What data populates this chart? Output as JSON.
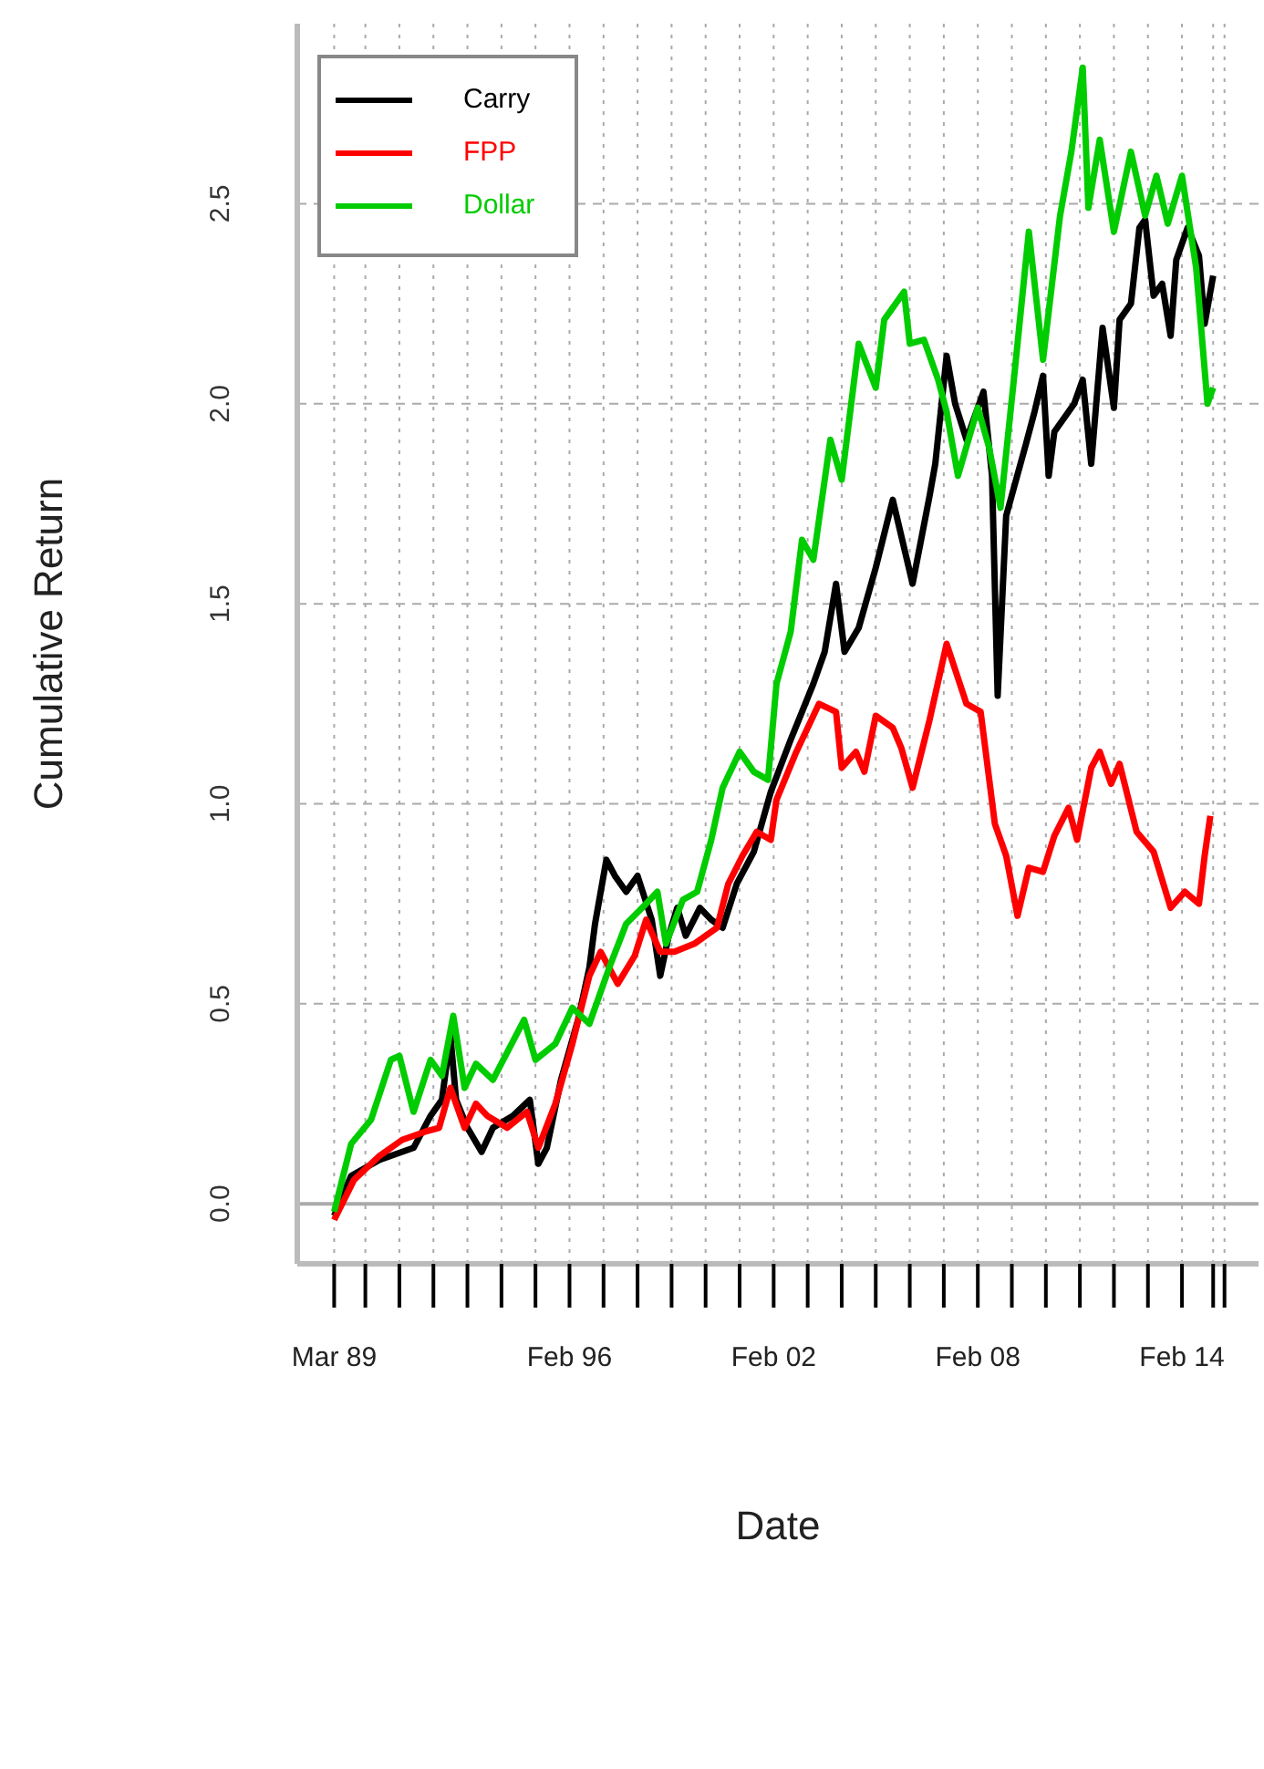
{
  "chart_data": {
    "type": "line",
    "xlabel": "Date",
    "ylabel": "Cumulative Return",
    "xlim": [
      "1988-02",
      "2016-05"
    ],
    "xticks": [
      {
        "value": "1989-03",
        "label": "Mar 89"
      },
      {
        "value": "1990-02",
        "label": null
      },
      {
        "value": "1991-02",
        "label": null
      },
      {
        "value": "1992-02",
        "label": null
      },
      {
        "value": "1993-02",
        "label": null
      },
      {
        "value": "1994-02",
        "label": null
      },
      {
        "value": "1995-02",
        "label": null
      },
      {
        "value": "1996-02",
        "label": "Feb 96"
      },
      {
        "value": "1997-02",
        "label": null
      },
      {
        "value": "1998-02",
        "label": null
      },
      {
        "value": "1999-02",
        "label": null
      },
      {
        "value": "2000-02",
        "label": null
      },
      {
        "value": "2001-02",
        "label": null
      },
      {
        "value": "2002-02",
        "label": "Feb 02"
      },
      {
        "value": "2003-02",
        "label": null
      },
      {
        "value": "2004-02",
        "label": null
      },
      {
        "value": "2005-02",
        "label": null
      },
      {
        "value": "2006-02",
        "label": null
      },
      {
        "value": "2007-02",
        "label": null
      },
      {
        "value": "2008-02",
        "label": "Feb 08"
      },
      {
        "value": "2009-02",
        "label": null
      },
      {
        "value": "2010-02",
        "label": null
      },
      {
        "value": "2011-02",
        "label": null
      },
      {
        "value": "2012-02",
        "label": null
      },
      {
        "value": "2013-02",
        "label": null
      },
      {
        "value": "2014-02",
        "label": "Feb 14"
      },
      {
        "value": "2015-01",
        "label": null
      },
      {
        "value": "2015-05",
        "label": null
      }
    ],
    "ylim": [
      -0.15,
      2.95
    ],
    "yticks": [
      {
        "value": 0,
        "label": "0.0"
      },
      0.5,
      {
        "value": 1,
        "label": "1.0"
      },
      1.5,
      {
        "value": 2,
        "label": "2.0"
      },
      2.5
    ],
    "grid": true,
    "legend": "top left",
    "line_style": "solid",
    "ref_lines": [
      {
        "axis": "y",
        "value": 0,
        "label": null,
        "color": "#aaaaaa",
        "line_style": "solid"
      }
    ],
    "series": [
      {
        "name": "Carry",
        "color": "#000000",
        "x": [
          "1989-03",
          "1989-09",
          "1990-07",
          "1991-07",
          "1992-01",
          "1992-05",
          "1992-08",
          "1992-10",
          "1993-02",
          "1993-07",
          "1993-11",
          "1994-06",
          "1994-12",
          "1995-03",
          "1995-06",
          "1995-11",
          "1996-05",
          "1996-09",
          "1996-11",
          "1997-03",
          "1997-06",
          "1997-10",
          "1998-02",
          "1998-07",
          "1998-10",
          "1999-01",
          "1999-04",
          "1999-07",
          "1999-12",
          "2000-04",
          "2000-08",
          "2001-01",
          "2001-07",
          "2002-01",
          "2002-08",
          "2002-12",
          "2003-04",
          "2003-08",
          "2003-12",
          "2004-03",
          "2004-08",
          "2005-02",
          "2005-08",
          "2005-10",
          "2006-03",
          "2006-09",
          "2006-11",
          "2007-03",
          "2007-06",
          "2007-10",
          "2008-04",
          "2008-07",
          "2008-09",
          "2008-12",
          "2009-07",
          "2009-10",
          "2010-01",
          "2010-03",
          "2010-05",
          "2010-12",
          "2011-03",
          "2011-06",
          "2011-10",
          "2012-02",
          "2012-04",
          "2012-08",
          "2012-11",
          "2013-01",
          "2013-04",
          "2013-07",
          "2013-10",
          "2013-12",
          "2014-04",
          "2014-08",
          "2014-10",
          "2015-01"
        ],
        "values": [
          -0.03,
          0.07,
          0.11,
          0.14,
          0.22,
          0.26,
          0.42,
          0.26,
          0.19,
          0.13,
          0.19,
          0.22,
          0.26,
          0.1,
          0.14,
          0.31,
          0.46,
          0.59,
          0.7,
          0.86,
          0.82,
          0.78,
          0.82,
          0.71,
          0.57,
          0.67,
          0.74,
          0.67,
          0.74,
          0.71,
          0.69,
          0.8,
          0.88,
          1.03,
          1.16,
          1.23,
          1.3,
          1.38,
          1.55,
          1.38,
          1.44,
          1.59,
          1.76,
          1.7,
          1.55,
          1.77,
          1.85,
          2.12,
          2.0,
          1.91,
          2.03,
          1.82,
          1.27,
          1.72,
          1.9,
          1.98,
          2.07,
          1.82,
          1.93,
          2.0,
          2.06,
          1.85,
          2.19,
          1.99,
          2.21,
          2.25,
          2.44,
          2.46,
          2.27,
          2.3,
          2.17,
          2.36,
          2.44,
          2.37,
          2.2,
          2.32
        ]
      },
      {
        "name": "FPP",
        "color": "#ff0000",
        "x": [
          "1989-03",
          "1989-10",
          "1990-07",
          "1991-03",
          "1991-11",
          "1992-04",
          "1992-08",
          "1993-01",
          "1993-05",
          "1993-09",
          "1994-04",
          "1994-11",
          "1995-03",
          "1995-09",
          "1996-03",
          "1996-09",
          "1997-01",
          "1997-07",
          "1998-01",
          "1998-05",
          "1998-10",
          "1999-03",
          "1999-10",
          "2000-06",
          "2000-10",
          "2001-03",
          "2001-08",
          "2002-01",
          "2002-03",
          "2002-10",
          "2003-06",
          "2003-12",
          "2004-02",
          "2004-07",
          "2004-10",
          "2005-02",
          "2005-08",
          "2005-11",
          "2006-03",
          "2006-09",
          "2007-03",
          "2007-10",
          "2008-03",
          "2008-08",
          "2008-12",
          "2009-04",
          "2009-08",
          "2010-01",
          "2010-05",
          "2010-10",
          "2011-01",
          "2011-06",
          "2011-09",
          "2012-01",
          "2012-04",
          "2012-10",
          "2013-04",
          "2013-10",
          "2014-03",
          "2014-08",
          "2014-10",
          "2014-12"
        ],
        "values": [
          -0.04,
          0.06,
          0.12,
          0.16,
          0.18,
          0.19,
          0.29,
          0.19,
          0.25,
          0.22,
          0.19,
          0.23,
          0.14,
          0.25,
          0.4,
          0.57,
          0.63,
          0.55,
          0.62,
          0.71,
          0.63,
          0.63,
          0.65,
          0.69,
          0.8,
          0.87,
          0.93,
          0.91,
          1.01,
          1.13,
          1.25,
          1.23,
          1.09,
          1.13,
          1.08,
          1.22,
          1.19,
          1.14,
          1.04,
          1.21,
          1.4,
          1.25,
          1.23,
          0.95,
          0.87,
          0.72,
          0.84,
          0.83,
          0.92,
          0.99,
          0.91,
          1.09,
          1.13,
          1.05,
          1.1,
          0.93,
          0.88,
          0.74,
          0.78,
          0.75,
          0.87,
          0.97
        ]
      },
      {
        "name": "Dollar",
        "color": "#00cc00",
        "x": [
          "1989-03",
          "1989-09",
          "1990-04",
          "1990-11",
          "1991-02",
          "1991-07",
          "1992-01",
          "1992-05",
          "1992-09",
          "1993-01",
          "1993-05",
          "1993-11",
          "1994-10",
          "1995-02",
          "1995-09",
          "1996-03",
          "1996-09",
          "1997-04",
          "1997-10",
          "1998-05",
          "1998-09",
          "1998-12",
          "1999-06",
          "1999-11",
          "2000-04",
          "2000-08",
          "2001-02",
          "2001-07",
          "2001-12",
          "2002-03",
          "2002-08",
          "2002-12",
          "2003-04",
          "2003-10",
          "2004-02",
          "2004-08",
          "2005-02",
          "2005-05",
          "2005-12",
          "2006-02",
          "2006-07",
          "2006-12",
          "2007-03",
          "2007-07",
          "2008-02",
          "2008-06",
          "2008-10",
          "2009-03",
          "2009-08",
          "2010-01",
          "2010-07",
          "2010-11",
          "2011-03",
          "2011-05",
          "2011-09",
          "2012-02",
          "2012-08",
          "2013-01",
          "2013-05",
          "2013-09",
          "2014-02",
          "2014-07",
          "2014-11",
          "2015-01"
        ],
        "values": [
          -0.02,
          0.15,
          0.21,
          0.36,
          0.37,
          0.23,
          0.36,
          0.32,
          0.47,
          0.29,
          0.35,
          0.31,
          0.46,
          0.36,
          0.4,
          0.49,
          0.45,
          0.59,
          0.7,
          0.75,
          0.78,
          0.65,
          0.76,
          0.78,
          0.91,
          1.04,
          1.13,
          1.08,
          1.06,
          1.3,
          1.43,
          1.66,
          1.61,
          1.91,
          1.81,
          2.15,
          2.04,
          2.21,
          2.28,
          2.15,
          2.16,
          2.06,
          1.98,
          1.82,
          1.99,
          1.89,
          1.74,
          2.08,
          2.43,
          2.11,
          2.47,
          2.63,
          2.84,
          2.49,
          2.66,
          2.43,
          2.63,
          2.47,
          2.57,
          2.45,
          2.57,
          2.34,
          2.0,
          2.04
        ]
      }
    ]
  }
}
